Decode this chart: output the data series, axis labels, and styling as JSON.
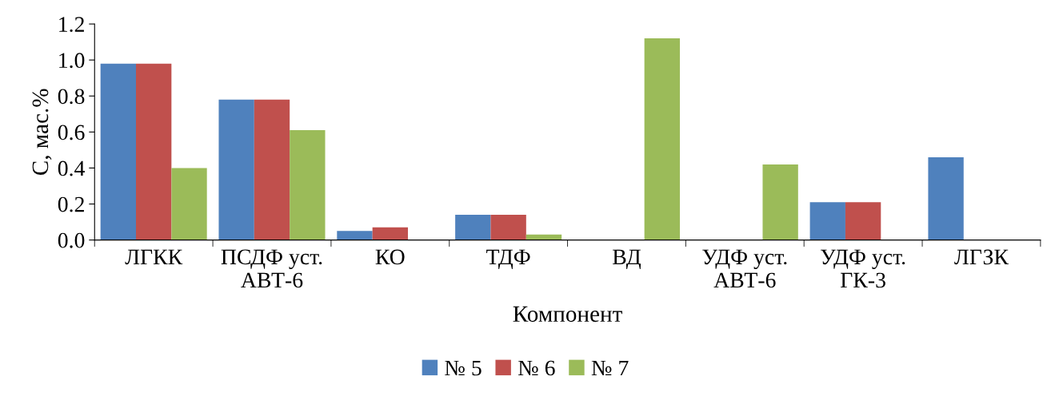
{
  "chart_data": {
    "type": "bar",
    "xlabel": "Компонент",
    "ylabel": "С, мас.%",
    "categories": [
      "ЛГКК",
      "ПСДФ уст.\nАВТ-6",
      "КО",
      "ТДФ",
      "ВД",
      "УДФ уст.\nАВТ-6",
      "УДФ уст.\nГК-3",
      "ЛГЗК"
    ],
    "series": [
      {
        "name": "№ 5",
        "color": "#4f81bd",
        "values": [
          0.98,
          0.78,
          0.05,
          0.14,
          null,
          null,
          0.21,
          0.46
        ]
      },
      {
        "name": "№ 6",
        "color": "#c0504d",
        "values": [
          0.98,
          0.78,
          0.07,
          0.14,
          null,
          null,
          0.21,
          null
        ]
      },
      {
        "name": "№ 7",
        "color": "#9bbb59",
        "values": [
          0.4,
          0.61,
          null,
          0.03,
          1.12,
          0.42,
          null,
          null
        ]
      }
    ],
    "ylim": [
      0,
      1.2
    ],
    "yticks": [
      {
        "value": 0,
        "label": "0.0"
      },
      {
        "value": 0.2,
        "label": "0.2"
      },
      {
        "value": 0.4,
        "label": "0.4"
      },
      {
        "value": 0.6,
        "label": "0.6"
      },
      {
        "value": 0.8,
        "label": "0.8"
      },
      {
        "value": 1.0,
        "label": "1.0"
      },
      {
        "value": 1.2,
        "label": "1.2"
      }
    ],
    "legend": "bottom",
    "grid": false
  }
}
